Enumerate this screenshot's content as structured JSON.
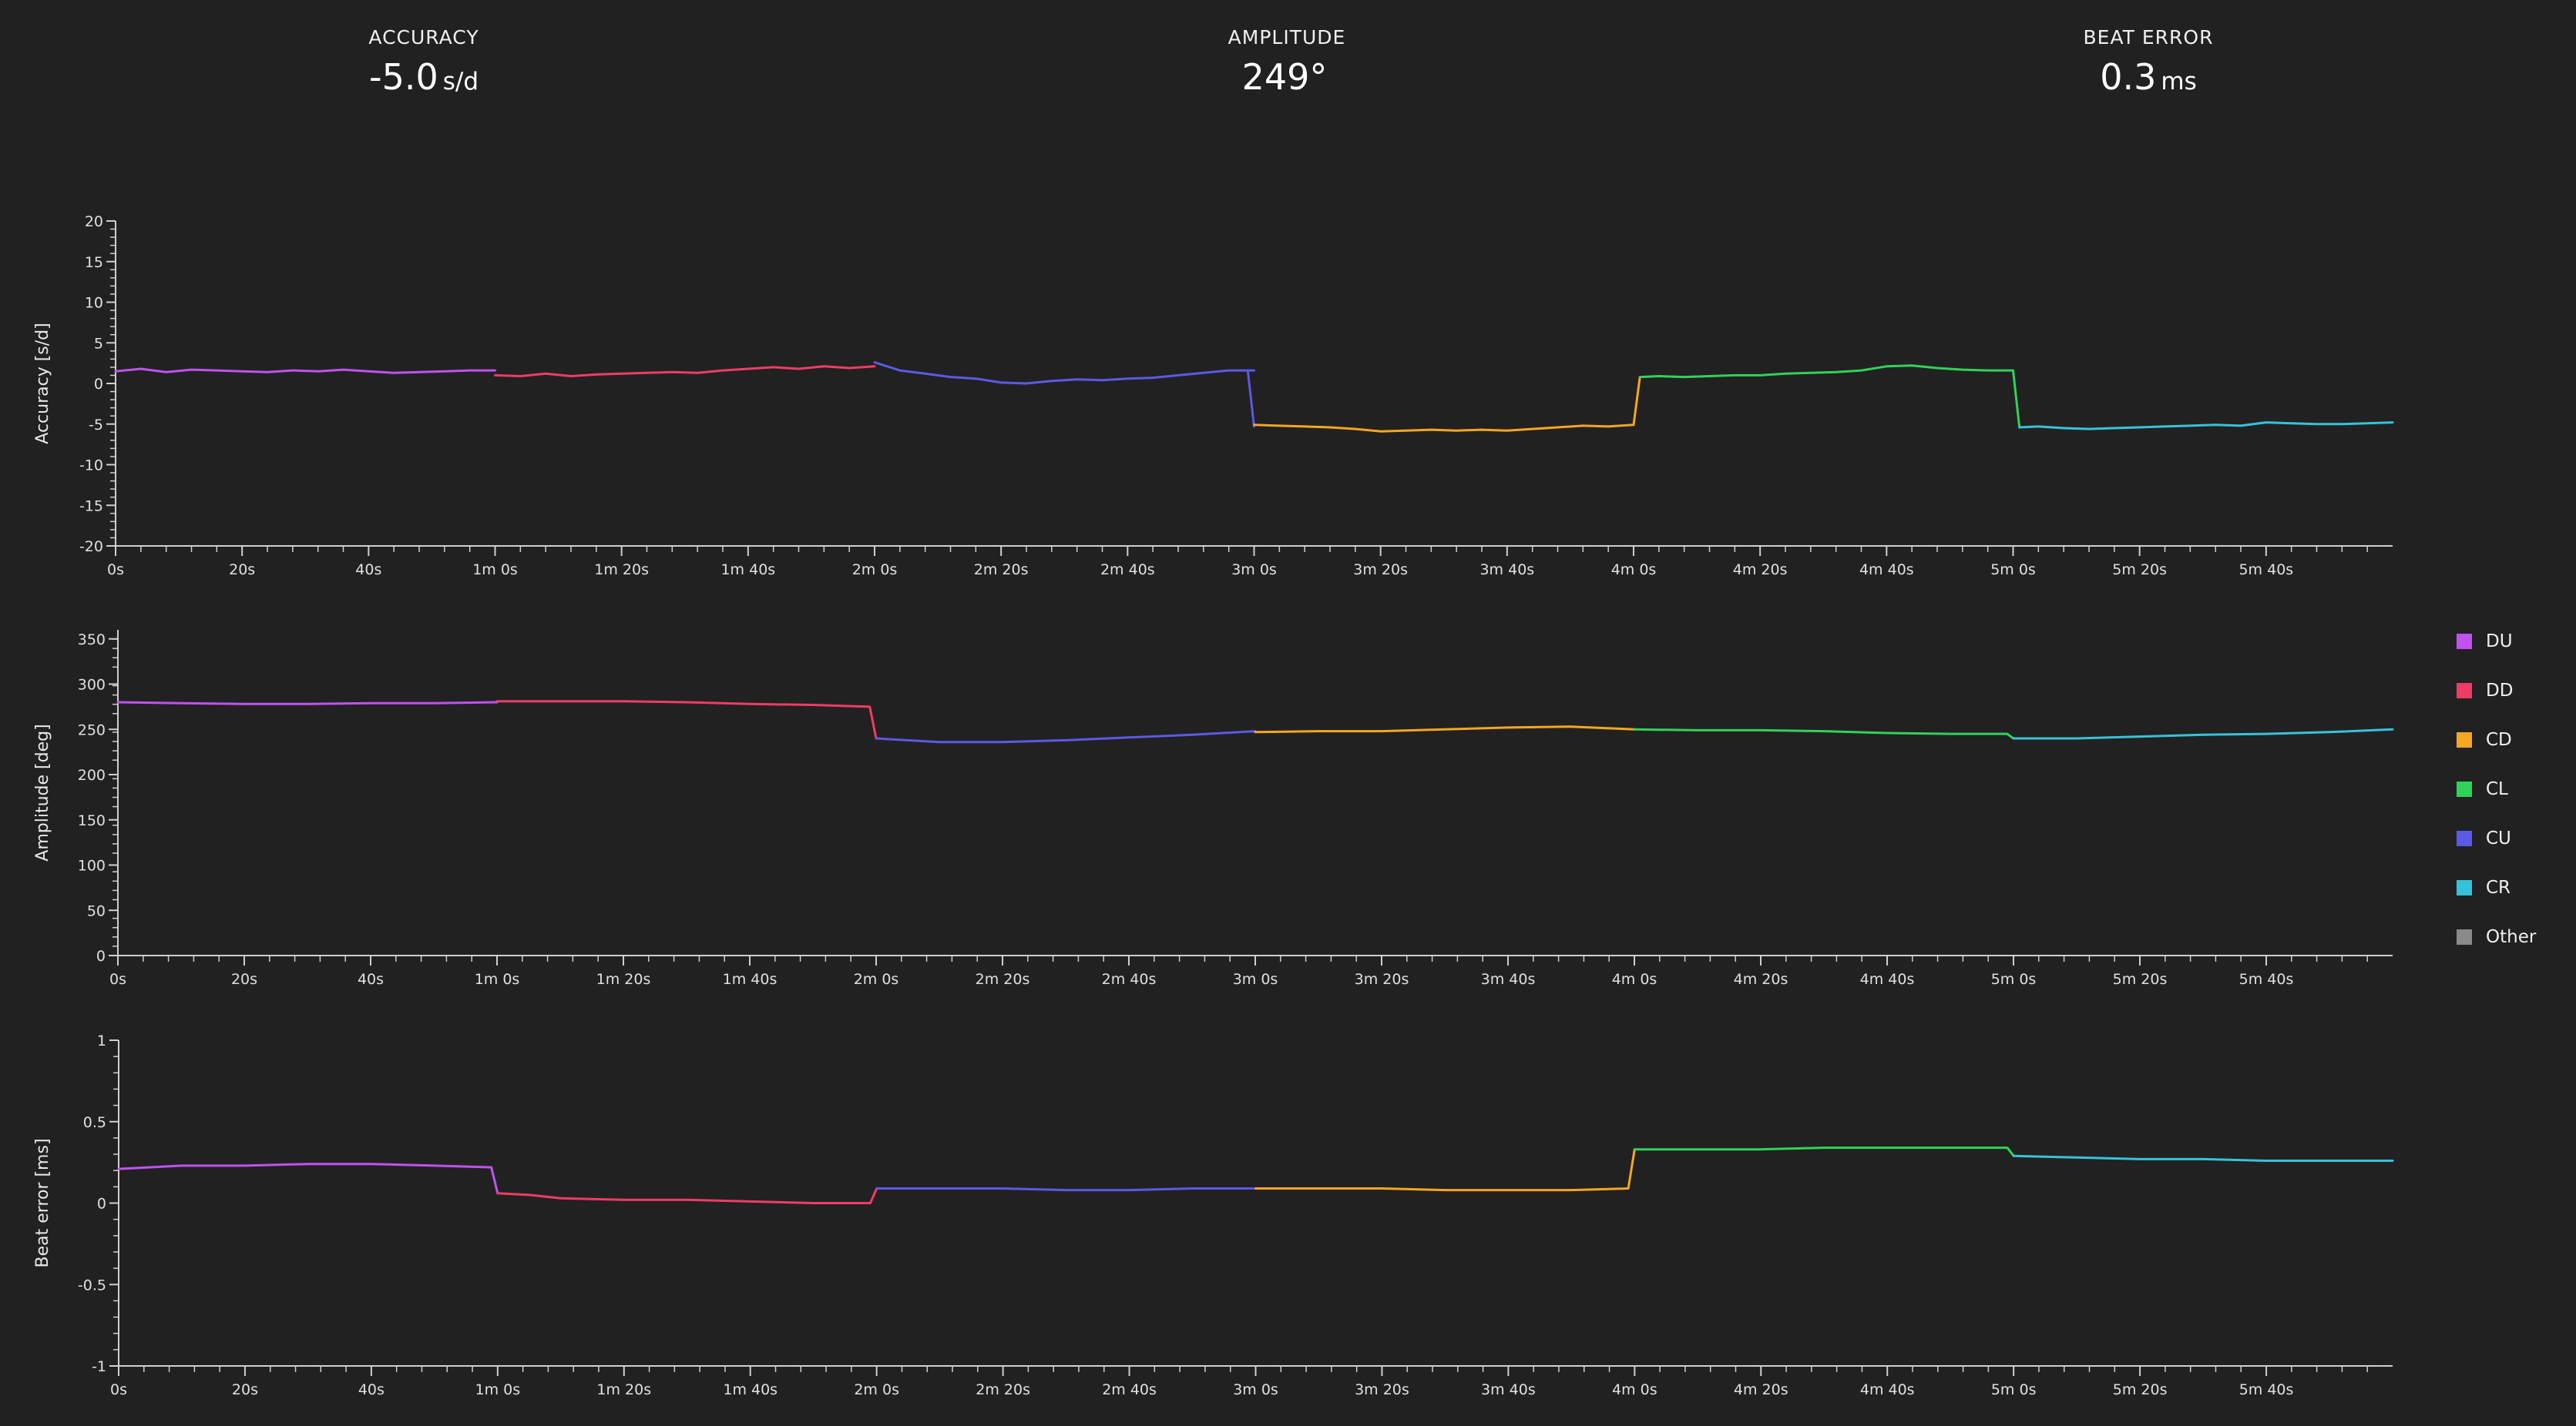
{
  "stats": {
    "accuracy": {
      "label": "ACCURACY",
      "value": "-5.0",
      "unit": "s/d"
    },
    "amplitude": {
      "label": "AMPLITUDE",
      "value": "249°",
      "unit": ""
    },
    "beat_error": {
      "label": "BEAT ERROR",
      "value": "0.3",
      "unit": "ms"
    }
  },
  "legend": [
    {
      "label": "DU",
      "color": "#c052f0"
    },
    {
      "label": "DD",
      "color": "#f03c64"
    },
    {
      "label": "CD",
      "color": "#f5a623"
    },
    {
      "label": "CL",
      "color": "#2fd35a"
    },
    {
      "label": "CU",
      "color": "#5a5ae6"
    },
    {
      "label": "CR",
      "color": "#35c3da"
    },
    {
      "label": "Other",
      "color": "#8a8a8a"
    }
  ],
  "colors": {
    "background": "#212121",
    "axis": "#cfcfcf"
  },
  "chart_data": [
    {
      "type": "line",
      "ylabel": "Accuracy [s/d]",
      "ylim": [
        -20,
        20
      ],
      "yticks": [
        -20,
        -15,
        -10,
        -5,
        0,
        5,
        10,
        15,
        20
      ],
      "xlim": [
        0,
        360
      ],
      "xticks": [
        0,
        20,
        40,
        60,
        80,
        100,
        120,
        140,
        160,
        180,
        200,
        220,
        240,
        260,
        280,
        300,
        320,
        340
      ],
      "xtick_labels": [
        "0s",
        "20s",
        "40s",
        "1m 0s",
        "1m 20s",
        "1m 40s",
        "2m 0s",
        "2m 20s",
        "2m 40s",
        "3m 0s",
        "3m 20s",
        "3m 40s",
        "4m 0s",
        "4m 20s",
        "4m 40s",
        "5m 0s",
        "5m 20s",
        "5m 40s"
      ],
      "series": [
        {
          "name": "DU",
          "color": "#c052f0",
          "x": [
            0,
            4,
            8,
            12,
            16,
            20,
            24,
            28,
            32,
            36,
            40,
            44,
            48,
            52,
            56,
            60
          ],
          "y": [
            1.5,
            1.8,
            1.4,
            1.7,
            1.6,
            1.5,
            1.4,
            1.6,
            1.5,
            1.7,
            1.5,
            1.3,
            1.4,
            1.5,
            1.6,
            1.6
          ]
        },
        {
          "name": "DD",
          "color": "#f03c64",
          "x": [
            60,
            64,
            68,
            72,
            76,
            80,
            84,
            88,
            92,
            96,
            100,
            104,
            108,
            112,
            116,
            120
          ],
          "y": [
            1.0,
            0.9,
            1.2,
            0.9,
            1.1,
            1.2,
            1.3,
            1.4,
            1.3,
            1.6,
            1.8,
            2.0,
            1.8,
            2.1,
            1.9,
            2.1
          ]
        },
        {
          "name": "CU",
          "color": "#5a5ae6",
          "x": [
            120,
            124,
            128,
            132,
            136,
            140,
            144,
            148,
            152,
            156,
            160,
            164,
            168,
            172,
            176,
            180
          ],
          "y": [
            2.6,
            1.6,
            1.2,
            0.8,
            0.6,
            0.1,
            0.0,
            0.3,
            0.5,
            0.4,
            0.6,
            0.7,
            1.0,
            1.3,
            1.6,
            1.6
          ]
        },
        {
          "name": "CU",
          "color": "#5a5ae6",
          "x": [
            179,
            180
          ],
          "y": [
            1.6,
            -5.3
          ]
        },
        {
          "name": "CD",
          "color": "#f5a623",
          "x": [
            180,
            184,
            188,
            192,
            196,
            200,
            204,
            208,
            212,
            216,
            220,
            224,
            228,
            232,
            236,
            240
          ],
          "y": [
            -5.1,
            -5.2,
            -5.3,
            -5.4,
            -5.6,
            -5.9,
            -5.8,
            -5.7,
            -5.8,
            -5.7,
            -5.8,
            -5.6,
            -5.4,
            -5.2,
            -5.3,
            -5.1
          ]
        },
        {
          "name": "CD",
          "color": "#f5a623",
          "x": [
            240,
            241
          ],
          "y": [
            -5.1,
            0.8
          ]
        },
        {
          "name": "CL",
          "color": "#2fd35a",
          "x": [
            241,
            244,
            248,
            252,
            256,
            260,
            264,
            268,
            272,
            276,
            280,
            284,
            288,
            292,
            296,
            300
          ],
          "y": [
            0.8,
            0.9,
            0.8,
            0.9,
            1.0,
            1.0,
            1.2,
            1.3,
            1.4,
            1.6,
            2.1,
            2.2,
            1.9,
            1.7,
            1.6,
            1.6
          ]
        },
        {
          "name": "CL",
          "color": "#2fd35a",
          "x": [
            300,
            301
          ],
          "y": [
            1.6,
            -5.4
          ]
        },
        {
          "name": "CR",
          "color": "#35c3da",
          "x": [
            301,
            304,
            308,
            312,
            316,
            320,
            324,
            328,
            332,
            336,
            340,
            344,
            348,
            352,
            356,
            360
          ],
          "y": [
            -5.4,
            -5.3,
            -5.5,
            -5.6,
            -5.5,
            -5.4,
            -5.3,
            -5.2,
            -5.1,
            -5.2,
            -4.8,
            -4.9,
            -5.0,
            -5.0,
            -4.9,
            -4.8
          ]
        }
      ]
    },
    {
      "type": "line",
      "ylabel": "Amplitude [deg]",
      "ylim": [
        0,
        360
      ],
      "yticks": [
        0,
        50,
        100,
        150,
        200,
        250,
        300,
        350
      ],
      "xlim": [
        0,
        360
      ],
      "xticks": [
        0,
        20,
        40,
        60,
        80,
        100,
        120,
        140,
        160,
        180,
        200,
        220,
        240,
        260,
        280,
        300,
        320,
        340
      ],
      "xtick_labels": [
        "0s",
        "20s",
        "40s",
        "1m 0s",
        "1m 20s",
        "1m 40s",
        "2m 0s",
        "2m 20s",
        "2m 40s",
        "3m 0s",
        "3m 20s",
        "3m 40s",
        "4m 0s",
        "4m 20s",
        "4m 40s",
        "5m 0s",
        "5m 20s",
        "5m 40s"
      ],
      "series": [
        {
          "name": "DU",
          "color": "#c052f0",
          "x": [
            0,
            10,
            20,
            30,
            40,
            50,
            60
          ],
          "y": [
            280,
            279,
            278,
            278,
            279,
            279,
            280
          ]
        },
        {
          "name": "DD",
          "color": "#f03c64",
          "x": [
            60,
            70,
            80,
            90,
            100,
            110,
            119,
            120
          ],
          "y": [
            281,
            281,
            281,
            280,
            278,
            277,
            275,
            240
          ]
        },
        {
          "name": "CU",
          "color": "#5a5ae6",
          "x": [
            120,
            130,
            140,
            150,
            160,
            170,
            180
          ],
          "y": [
            240,
            236,
            236,
            238,
            241,
            244,
            248
          ]
        },
        {
          "name": "CD",
          "color": "#f5a623",
          "x": [
            180,
            190,
            200,
            210,
            220,
            230,
            240
          ],
          "y": [
            247,
            248,
            248,
            250,
            252,
            253,
            250
          ]
        },
        {
          "name": "CL",
          "color": "#2fd35a",
          "x": [
            240,
            250,
            260,
            270,
            280,
            290,
            299,
            300
          ],
          "y": [
            250,
            249,
            249,
            248,
            246,
            245,
            245,
            240
          ]
        },
        {
          "name": "CR",
          "color": "#35c3da",
          "x": [
            300,
            310,
            320,
            330,
            340,
            350,
            360
          ],
          "y": [
            240,
            240,
            242,
            244,
            245,
            247,
            250
          ]
        }
      ]
    },
    {
      "type": "line",
      "ylabel": "Beat error [ms]",
      "ylim": [
        -1,
        1
      ],
      "yticks": [
        -1,
        -0.5,
        0,
        0.5,
        1
      ],
      "xlim": [
        0,
        360
      ],
      "xticks": [
        0,
        20,
        40,
        60,
        80,
        100,
        120,
        140,
        160,
        180,
        200,
        220,
        240,
        260,
        280,
        300,
        320,
        340
      ],
      "xtick_labels": [
        "0s",
        "20s",
        "40s",
        "1m 0s",
        "1m 20s",
        "1m 40s",
        "2m 0s",
        "2m 20s",
        "2m 40s",
        "3m 0s",
        "3m 20s",
        "3m 40s",
        "4m 0s",
        "4m 20s",
        "4m 40s",
        "5m 0s",
        "5m 20s",
        "5m 40s"
      ],
      "series": [
        {
          "name": "DU",
          "color": "#c052f0",
          "x": [
            0,
            5,
            10,
            20,
            30,
            40,
            50,
            59,
            60
          ],
          "y": [
            0.21,
            0.22,
            0.23,
            0.23,
            0.24,
            0.24,
            0.23,
            0.22,
            0.06
          ]
        },
        {
          "name": "DD",
          "color": "#f03c64",
          "x": [
            60,
            65,
            70,
            80,
            90,
            100,
            110,
            119,
            120
          ],
          "y": [
            0.06,
            0.05,
            0.03,
            0.02,
            0.02,
            0.01,
            0.0,
            0.0,
            0.09
          ]
        },
        {
          "name": "CU",
          "color": "#5a5ae6",
          "x": [
            120,
            130,
            140,
            150,
            160,
            170,
            180
          ],
          "y": [
            0.09,
            0.09,
            0.09,
            0.08,
            0.08,
            0.09,
            0.09
          ]
        },
        {
          "name": "CD",
          "color": "#f5a623",
          "x": [
            180,
            190,
            200,
            210,
            220,
            230,
            239,
            240
          ],
          "y": [
            0.09,
            0.09,
            0.09,
            0.08,
            0.08,
            0.08,
            0.09,
            0.33
          ]
        },
        {
          "name": "CL",
          "color": "#2fd35a",
          "x": [
            240,
            250,
            260,
            270,
            280,
            290,
            299,
            300
          ],
          "y": [
            0.33,
            0.33,
            0.33,
            0.34,
            0.34,
            0.34,
            0.34,
            0.29
          ]
        },
        {
          "name": "CR",
          "color": "#35c3da",
          "x": [
            300,
            310,
            320,
            330,
            340,
            350,
            360
          ],
          "y": [
            0.29,
            0.28,
            0.27,
            0.27,
            0.26,
            0.26,
            0.26
          ]
        }
      ]
    }
  ]
}
